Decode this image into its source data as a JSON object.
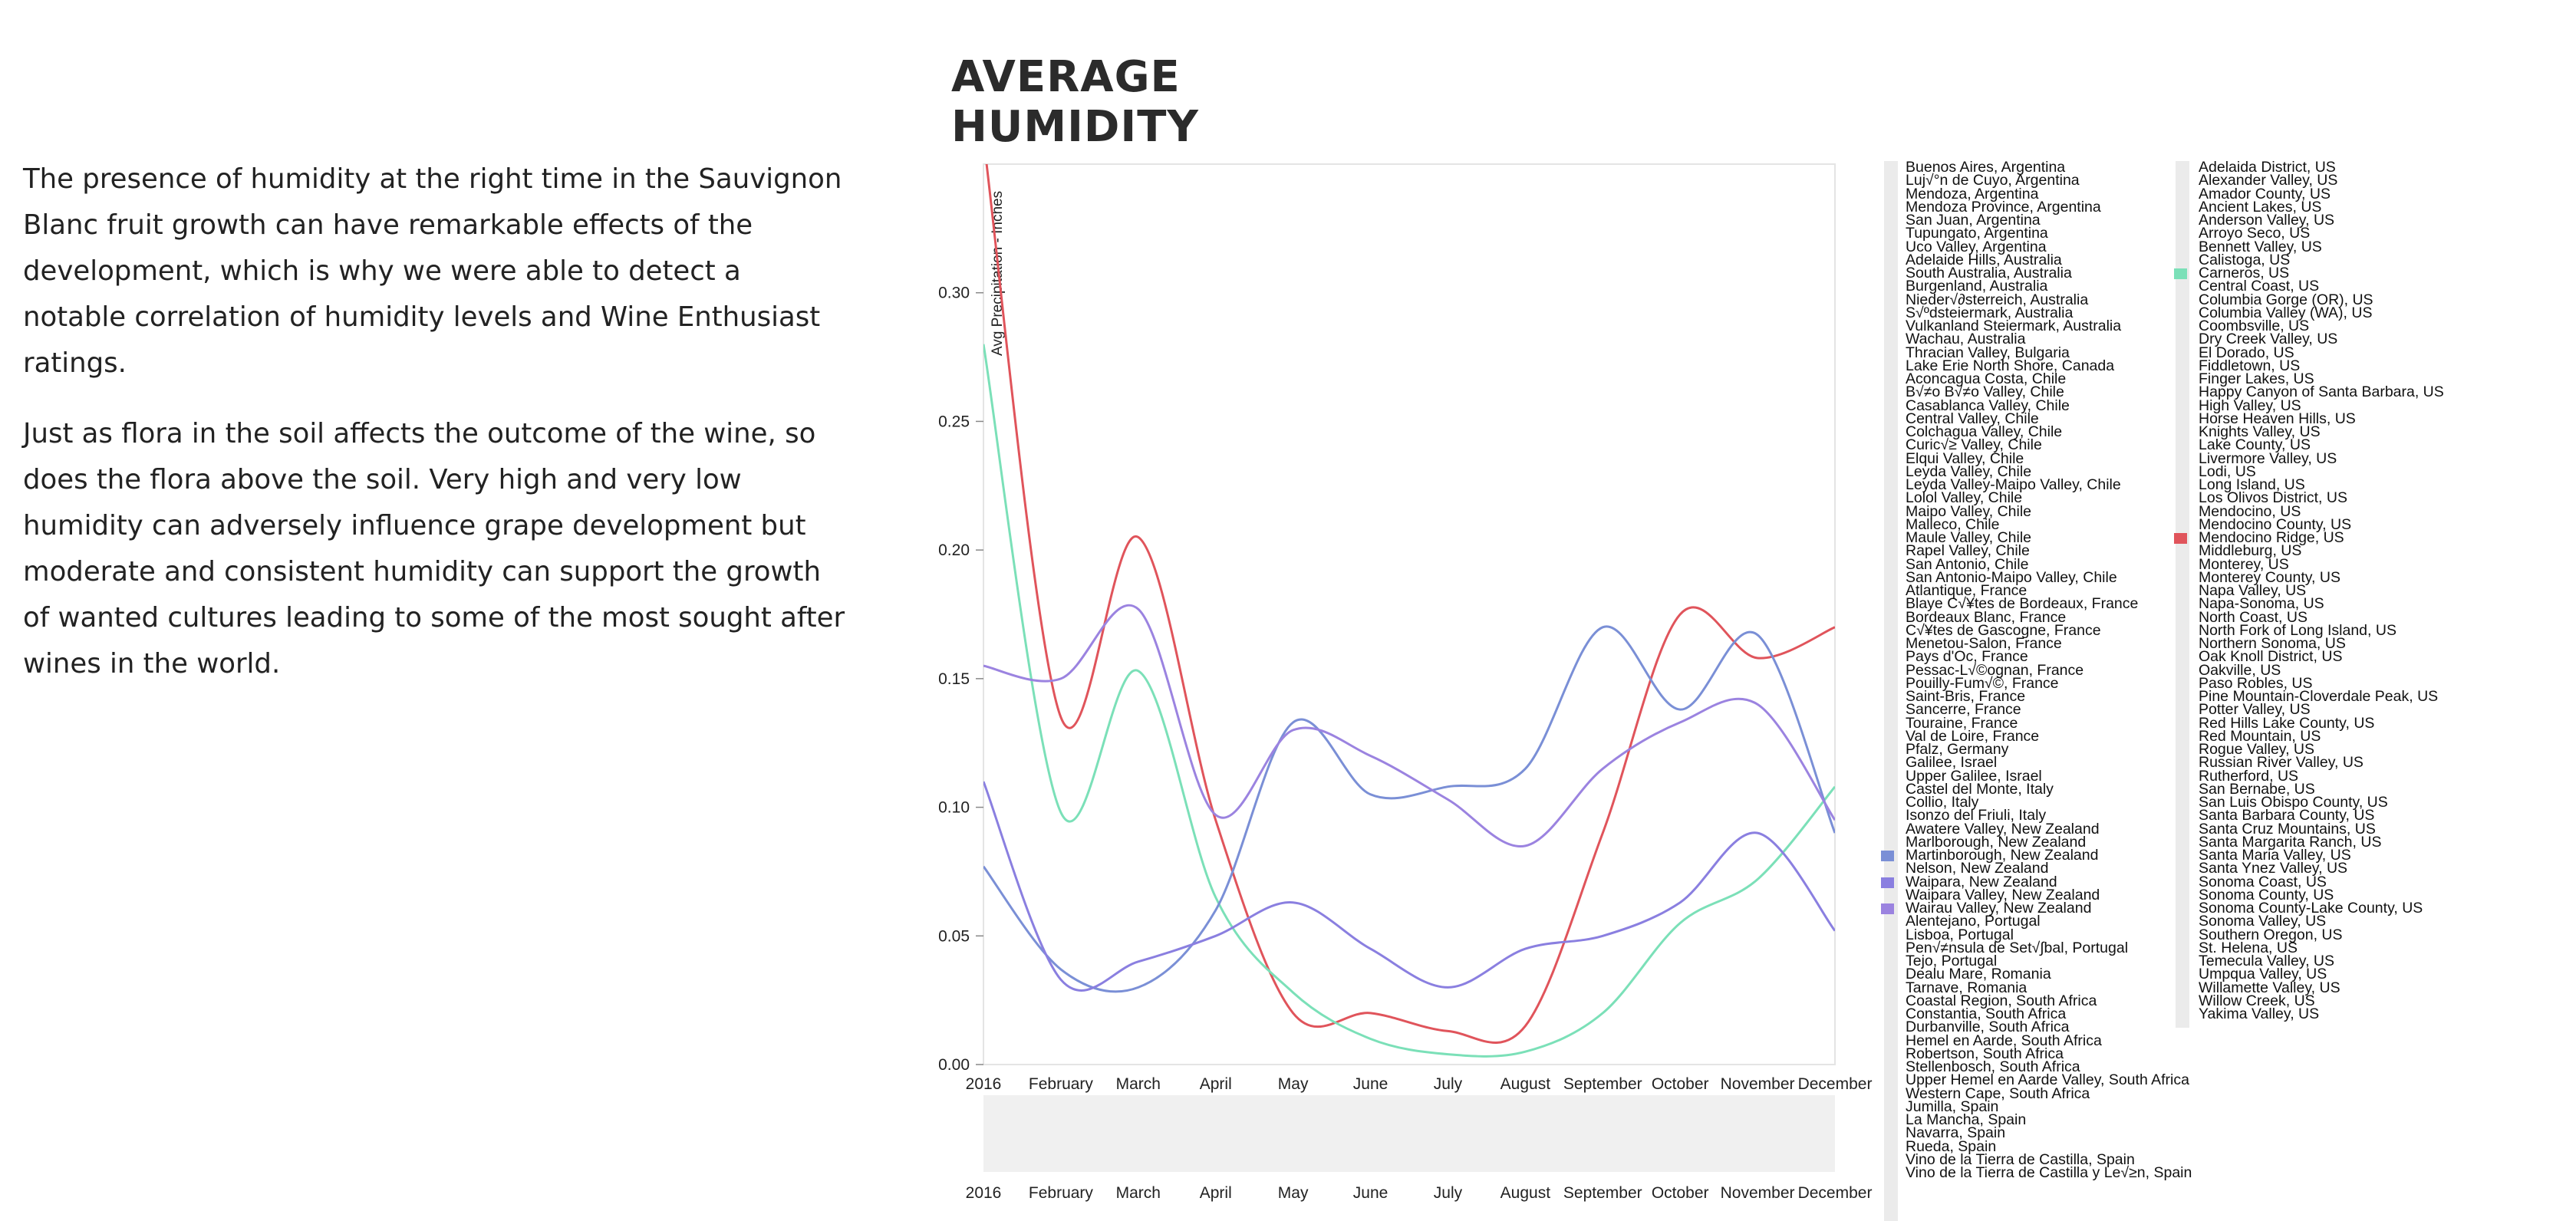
{
  "page": {
    "title": "AVERAGE HUMIDITY",
    "paragraphs": [
      "The presence of humidity at the right time in the Sauvignon Blanc fruit growth can have remarkable effects of the development, which is why we were able to detect a notable correlation of humidity levels and Wine Enthusiast ratings.",
      "Just as flora in the soil affects the outcome of the wine, so does the flora above the soil. Very high and very low humidity can adversely influence grape development but moderate and consistent humidity can support the growth of wanted cultures leading to some of the most sought after wines in the world."
    ]
  },
  "chart_data": {
    "type": "line",
    "title": "",
    "xlabel": "",
    "ylabel": "Avg Precipitation - Inches",
    "ylim": [
      0,
      0.35
    ],
    "yticks": [
      0.0,
      0.05,
      0.1,
      0.15,
      0.2,
      0.25,
      0.3
    ],
    "yticklabels": [
      "0.00",
      "0.05",
      "0.10",
      "0.15",
      "0.20",
      "0.25",
      "0.30"
    ],
    "x": [
      1,
      2,
      3,
      4,
      5,
      6,
      7,
      8,
      9,
      10,
      11,
      12
    ],
    "xticklabels": [
      "2016",
      "February",
      "March",
      "April",
      "May",
      "June",
      "July",
      "August",
      "September",
      "October",
      "November",
      "December"
    ],
    "curve": "smooth",
    "series": [
      {
        "color": "#e0545b",
        "values": [
          0.36,
          0.135,
          0.205,
          0.095,
          0.02,
          0.02,
          0.013,
          0.015,
          0.09,
          0.175,
          0.158,
          0.17
        ]
      },
      {
        "color": "#7be0b8",
        "values": [
          0.28,
          0.098,
          0.153,
          0.065,
          0.028,
          0.01,
          0.004,
          0.005,
          0.02,
          0.055,
          0.072,
          0.108
        ]
      },
      {
        "color": "#7a8fd6",
        "values": [
          0.077,
          0.037,
          0.03,
          0.06,
          0.133,
          0.105,
          0.108,
          0.115,
          0.17,
          0.138,
          0.167,
          0.09
        ]
      },
      {
        "color": "#9b83e0",
        "values": [
          0.155,
          0.15,
          0.177,
          0.097,
          0.13,
          0.12,
          0.103,
          0.085,
          0.115,
          0.133,
          0.14,
          0.095
        ]
      },
      {
        "color": "#8a7fe0",
        "values": [
          0.11,
          0.033,
          0.04,
          0.05,
          0.063,
          0.045,
          0.03,
          0.045,
          0.05,
          0.063,
          0.09,
          0.052
        ]
      }
    ],
    "brush_xticklabels": [
      "2016",
      "February",
      "March",
      "April",
      "May",
      "June",
      "July",
      "August",
      "September",
      "October",
      "November",
      "December"
    ],
    "legend_placement": "right",
    "legend": [
      {
        "items": [
          "Buenos Aires, Argentina",
          "Luj√°n de Cuyo, Argentina",
          "Mendoza, Argentina",
          "Mendoza Province, Argentina",
          "San Juan, Argentina",
          "Tupungato, Argentina",
          "Uco Valley, Argentina",
          "Adelaide Hills, Australia",
          "South Australia, Australia",
          "Burgenland, Australia",
          "Nieder√∂sterreich, Australia",
          "S√ºdsteiermark, Australia",
          "Vulkanland Steiermark, Australia",
          "Wachau, Australia",
          "Thracian Valley, Bulgaria",
          "Lake Erie North Shore, Canada",
          "Aconcagua Costa, Chile",
          "B√≠o B√≠o Valley, Chile",
          "Casablanca Valley, Chile",
          "Central Valley, Chile",
          "Colchagua Valley, Chile",
          "Curic√≥ Valley, Chile",
          "Elqui Valley, Chile",
          "Leyda Valley, Chile",
          "Leyda Valley-Maipo Valley, Chile",
          "Lolol Valley, Chile",
          "Maipo Valley, Chile",
          "Malleco, Chile",
          "Maule Valley, Chile",
          "Rapel Valley, Chile",
          "San Antonio, Chile",
          "San Antonio-Maipo Valley, Chile",
          "Atlantique, France",
          "Blaye C√¥tes de Bordeaux, France",
          "Bordeaux Blanc, France",
          "C√¥tes de Gascogne, France",
          "Menetou-Salon, France",
          "Pays d'Oc, France",
          "Pessac-L√©ognan, France",
          "Pouilly-Fum√©, France",
          "Saint-Bris, France",
          "Sancerre, France",
          "Touraine, France",
          "Val de Loire, France",
          "Pfalz, Germany",
          "Galilee, Israel",
          "Upper Galilee, Israel",
          "Castel del Monte, Italy",
          "Collio, Italy",
          "Isonzo del Friuli, Italy",
          "Awatere Valley, New Zealand",
          "Marlborough, New Zealand",
          "Martinborough, New Zealand",
          "Nelson, New Zealand",
          "Waipara, New Zealand",
          "Waipara Valley, New Zealand",
          "Wairau Valley, New Zealand",
          "Alentejano, Portugal",
          "Lisboa, Portugal",
          "Pen√≠nsula de Set√∫bal, Portugal",
          "Tejo, Portugal",
          "Dealu Mare, Romania",
          "Tarnave, Romania",
          "Coastal Region, South Africa",
          "Constantia, South Africa",
          "Durbanville, South Africa",
          "Hemel en Aarde, South Africa",
          "Robertson, South Africa",
          "Stellenbosch, South Africa",
          "Upper Hemel en Aarde Valley, South Africa",
          "Western Cape, South Africa",
          "Jumilla, Spain",
          "La Mancha, Spain",
          "Navarra, Spain",
          "Rueda, Spain",
          "Vino de la Tierra de Castilla, Spain",
          "Vino de la Tierra de Castilla y Le√≥n, Spain"
        ],
        "swatches": {
          "52": "#7a8fd6",
          "54": "#8a7fe0",
          "56": "#9b83e0"
        }
      },
      {
        "items": [
          "Adelaida District, US",
          "Alexander Valley, US",
          "Amador County, US",
          "Ancient Lakes, US",
          "Anderson Valley, US",
          "Arroyo Seco, US",
          "Bennett Valley, US",
          "Calistoga, US",
          "Carneros, US",
          "Central Coast, US",
          "Columbia Gorge (OR), US",
          "Columbia Valley (WA), US",
          "Coombsville, US",
          "Dry Creek Valley, US",
          "El Dorado, US",
          "Fiddletown, US",
          "Finger Lakes, US",
          "Happy Canyon of Santa Barbara, US",
          "High Valley, US",
          "Horse Heaven Hills, US",
          "Knights Valley, US",
          "Lake County, US",
          "Livermore Valley, US",
          "Lodi, US",
          "Long Island, US",
          "Los Olivos District, US",
          "Mendocino, US",
          "Mendocino County, US",
          "Mendocino Ridge, US",
          "Middleburg, US",
          "Monterey, US",
          "Monterey County, US",
          "Napa Valley, US",
          "Napa-Sonoma, US",
          "North Coast, US",
          "North Fork of Long Island, US",
          "Northern Sonoma, US",
          "Oak Knoll District, US",
          "Oakville, US",
          "Paso Robles, US",
          "Pine Mountain-Cloverdale Peak, US",
          "Potter Valley, US",
          "Red Hills Lake County, US",
          "Red Mountain, US",
          "Rogue Valley, US",
          "Russian River Valley, US",
          "Rutherford, US",
          "San Bernabe, US",
          "San Luis Obispo County, US",
          "Santa Barbara County, US",
          "Santa Cruz Mountains, US",
          "Santa Margarita Ranch, US",
          "Santa Maria Valley, US",
          "Santa Ynez Valley, US",
          "Sonoma Coast, US",
          "Sonoma County, US",
          "Sonoma County-Lake County, US",
          "Sonoma Valley, US",
          "Southern Oregon, US",
          "St. Helena, US",
          "Temecula Valley, US",
          "Umpqua Valley, US",
          "Willamette Valley, US",
          "Willow Creek, US",
          "Yakima Valley, US"
        ],
        "swatches": {
          "8": "#7be0b8",
          "28": "#e0545b"
        }
      }
    ]
  }
}
